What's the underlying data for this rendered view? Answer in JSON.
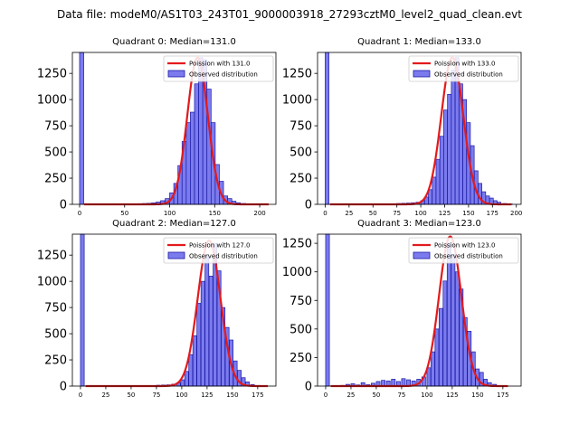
{
  "figure": {
    "suptitle": "Data file: modeM0/AS1T03_243T01_9000003918_27293cztM0_level2_quad_clean.evt"
  },
  "colors": {
    "bar_fill": "#7b7bee",
    "bar_edge": "#1a1aa6",
    "curve": "#e31a1c",
    "axis": "#000000"
  },
  "chart_data": [
    {
      "type": "bar",
      "title": "Quadrant 0: Median=131.0",
      "legend": {
        "curve_label": "Poission with 131.0",
        "hist_label": "Observed distribution",
        "placement": "top-right"
      },
      "xlim": [
        -8,
        218
      ],
      "ylim": [
        0,
        1450
      ],
      "xticks": [
        0,
        50,
        100,
        150,
        200
      ],
      "yticks": [
        0,
        250,
        500,
        750,
        1000,
        1250
      ],
      "bin_width": 4.6,
      "zero_bar": {
        "x": 0,
        "height": 1450
      },
      "bars_x": [
        55,
        60,
        65,
        70,
        75,
        80,
        85,
        90,
        95,
        100,
        104.6,
        109.2,
        113.8,
        118.4,
        123,
        127.6,
        132.2,
        136.8,
        141.4,
        146,
        150.6,
        155.2,
        159.8,
        164.4,
        169,
        174,
        180,
        186,
        192
      ],
      "bars_y": [
        3,
        5,
        6,
        8,
        10,
        14,
        22,
        35,
        55,
        110,
        200,
        370,
        600,
        780,
        880,
        1150,
        1400,
        1380,
        1100,
        780,
        380,
        220,
        80,
        55,
        30,
        15,
        8,
        4,
        2
      ],
      "curve_mean": 131,
      "curve_peak": 1400,
      "curve_sigma": 11.4,
      "curve_range": [
        5,
        210
      ]
    },
    {
      "type": "bar",
      "title": "Quadrant 1: Median=133.0",
      "legend": {
        "curve_label": "Poission with 133.0",
        "hist_label": "Observed distribution",
        "placement": "top-right"
      },
      "xlim": [
        -8,
        205
      ],
      "ylim": [
        0,
        1450
      ],
      "xticks": [
        0,
        25,
        50,
        75,
        100,
        125,
        150,
        175,
        200
      ],
      "yticks": [
        0,
        250,
        500,
        750,
        1000,
        1250
      ],
      "bin_width": 3.9,
      "zero_bar": {
        "x": 0,
        "height": 1450
      },
      "bars_x": [
        70,
        75,
        80,
        85,
        90,
        95,
        100,
        104,
        108,
        112,
        116,
        120,
        124,
        128,
        132,
        136,
        140,
        144,
        148,
        152,
        156,
        160,
        164,
        168,
        172,
        176,
        180,
        186,
        192
      ],
      "bars_y": [
        5,
        8,
        10,
        12,
        15,
        20,
        35,
        70,
        140,
        260,
        430,
        650,
        900,
        1050,
        1280,
        1400,
        1150,
        1000,
        780,
        560,
        320,
        200,
        120,
        80,
        60,
        35,
        20,
        8,
        3
      ],
      "curve_mean": 133,
      "curve_peak": 1400,
      "curve_sigma": 11.5,
      "curve_range": [
        5,
        195
      ]
    },
    {
      "type": "bar",
      "title": "Quadrant 2: Median=127.0",
      "legend": {
        "curve_label": "Poission with 127.0",
        "hist_label": "Observed distribution",
        "placement": "top-right"
      },
      "xlim": [
        -8,
        193
      ],
      "ylim": [
        0,
        1450
      ],
      "xticks": [
        0,
        25,
        50,
        75,
        100,
        125,
        150,
        175
      ],
      "yticks": [
        0,
        250,
        500,
        750,
        1000,
        1250
      ],
      "bin_width": 3.7,
      "zero_bar": {
        "x": 0,
        "height": 1450
      },
      "bars_x": [
        70,
        75,
        80,
        85,
        90,
        95,
        99,
        103,
        107,
        111,
        115,
        119,
        123,
        127,
        131,
        135,
        139,
        143,
        147,
        151,
        155,
        159,
        163,
        168,
        174
      ],
      "bars_y": [
        5,
        8,
        10,
        12,
        18,
        30,
        60,
        140,
        300,
        480,
        790,
        1000,
        1250,
        1050,
        1360,
        1100,
        750,
        560,
        440,
        240,
        150,
        80,
        40,
        15,
        6
      ],
      "curve_mean": 127,
      "curve_peak": 1390,
      "curve_sigma": 11.2,
      "curve_range": [
        5,
        185
      ]
    },
    {
      "type": "bar",
      "title": "Quadrant 3: Median=123.0",
      "legend": {
        "curve_label": "Poission with 123.0",
        "hist_label": "Observed distribution",
        "placement": "top-right"
      },
      "xlim": [
        -8,
        193
      ],
      "ylim": [
        0,
        1330
      ],
      "xticks": [
        0,
        25,
        50,
        75,
        100,
        125,
        150,
        175
      ],
      "yticks": [
        0,
        250,
        500,
        750,
        1000,
        1250
      ],
      "bin_width": 3.7,
      "zero_bar": {
        "x": 0,
        "height": 1330
      },
      "bars_x": [
        15,
        20,
        25,
        30,
        35,
        40,
        45,
        50,
        55,
        60,
        65,
        70,
        75,
        80,
        85,
        90,
        95,
        100,
        104,
        108,
        112,
        116,
        120,
        124,
        128,
        132,
        136,
        140,
        144,
        148,
        152,
        156,
        160,
        165,
        170
      ],
      "bars_y": [
        6,
        15,
        20,
        10,
        30,
        12,
        25,
        40,
        50,
        45,
        60,
        40,
        65,
        55,
        45,
        60,
        80,
        160,
        300,
        500,
        680,
        920,
        1250,
        1150,
        1000,
        850,
        600,
        480,
        300,
        150,
        120,
        60,
        30,
        15,
        5
      ],
      "curve_mean": 123,
      "curve_peak": 1310,
      "curve_sigma": 11.0,
      "curve_range": [
        5,
        180
      ]
    }
  ]
}
